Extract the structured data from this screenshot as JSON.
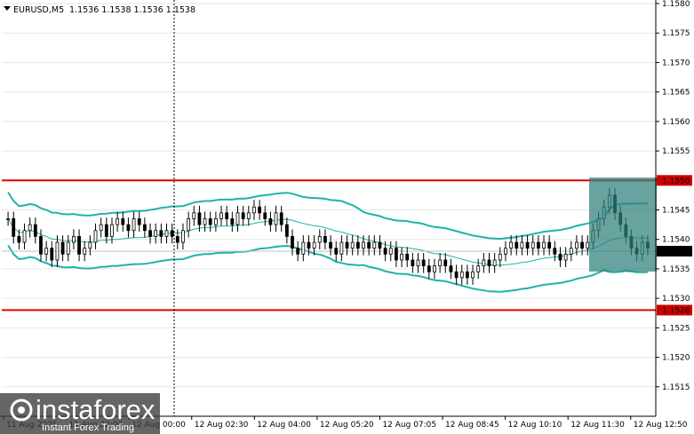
{
  "header": {
    "symbol_label": "EURUSD,M5",
    "ohlc_text": "1.1536 1.1538 1.1536 1.1538"
  },
  "colors": {
    "background": "#ffffff",
    "candle": "#000000",
    "bollinger": "#20b2aa",
    "support_resistance": "#e00000",
    "highlight_box": "#2f7f7a",
    "price_tag": "#d00000",
    "current_price_line": "#c0c0c0"
  },
  "levels": {
    "resistance": "1.1550",
    "support": "1.1528",
    "current": "1.1538"
  },
  "chart_data": {
    "type": "candlestick",
    "symbol": "EURUSD",
    "timeframe": "M5",
    "ylim": [
      1.151,
      1.158
    ],
    "y_ticks": [
      "1.1580",
      "1.1575",
      "1.1570",
      "1.1565",
      "1.1560",
      "1.1555",
      "1.1550",
      "1.1545",
      "1.1540",
      "1.1535",
      "1.1530",
      "1.1525",
      "1.1520",
      "1.1515"
    ],
    "x_ticks": [
      "11 Aug 2025",
      "11 Aug 22:00",
      "12 Aug 00:00",
      "12 Aug 02:30",
      "12 Aug 04:00",
      "12 Aug 05:20",
      "12 Aug 07:05",
      "12 Aug 08:45",
      "12 Aug 10:10",
      "12 Aug 11:30",
      "12 Aug 12:50"
    ],
    "close": [
      1.15435,
      1.15405,
      1.15395,
      1.15415,
      1.15425,
      1.15405,
      1.15375,
      1.15385,
      1.15365,
      1.15395,
      1.15375,
      1.15395,
      1.15405,
      1.15375,
      1.15385,
      1.15395,
      1.15415,
      1.15425,
      1.15405,
      1.15425,
      1.15435,
      1.15425,
      1.15415,
      1.15435,
      1.15425,
      1.15415,
      1.15405,
      1.15415,
      1.15405,
      1.15415,
      1.15405,
      1.15395,
      1.15415,
      1.15435,
      1.15445,
      1.15425,
      1.15435,
      1.15425,
      1.15435,
      1.15445,
      1.15435,
      1.15425,
      1.15445,
      1.15435,
      1.15445,
      1.15455,
      1.15445,
      1.15435,
      1.15425,
      1.15445,
      1.15425,
      1.15405,
      1.15385,
      1.15375,
      1.15395,
      1.15385,
      1.15395,
      1.15405,
      1.15395,
      1.15385,
      1.15375,
      1.15395,
      1.15385,
      1.15395,
      1.15385,
      1.15395,
      1.15385,
      1.15395,
      1.15385,
      1.15375,
      1.15385,
      1.15365,
      1.15375,
      1.15365,
      1.15355,
      1.15365,
      1.15355,
      1.15345,
      1.15355,
      1.15365,
      1.15355,
      1.15345,
      1.15335,
      1.15345,
      1.15335,
      1.15345,
      1.15355,
      1.15365,
      1.15355,
      1.15365,
      1.15375,
      1.15385,
      1.15395,
      1.15385,
      1.15395,
      1.15385,
      1.15395,
      1.15385,
      1.15395,
      1.15385,
      1.15375,
      1.15365,
      1.15375,
      1.15385,
      1.15395,
      1.15385,
      1.15395,
      1.15415,
      1.15435,
      1.15455,
      1.15475,
      1.15445,
      1.15425,
      1.15405,
      1.15385,
      1.15375,
      1.15395,
      1.15385
    ]
  }
}
